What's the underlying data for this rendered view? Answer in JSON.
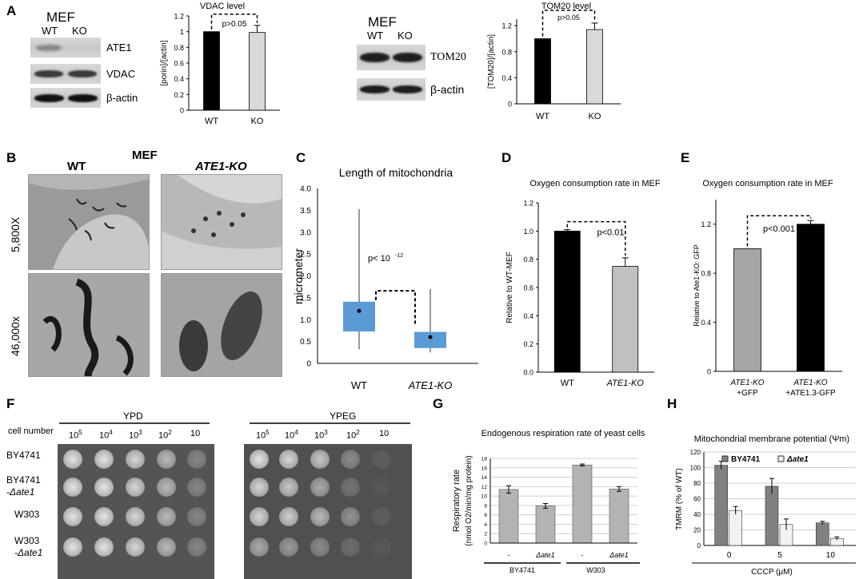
{
  "panel_letters": {
    "A": "A",
    "B": "B",
    "C": "C",
    "D": "D",
    "E": "E",
    "F": "F",
    "G": "G",
    "H": "H"
  },
  "panelA": {
    "blot1": {
      "title": "MEF",
      "lanes": [
        "WT",
        "KO"
      ],
      "rows": [
        "ATE1",
        "VDAC",
        "β-actin"
      ]
    },
    "blot2": {
      "title": "MEF",
      "lanes": [
        "WT",
        "KO"
      ],
      "rows": [
        "TOM20",
        "β-actin"
      ]
    }
  },
  "panelB": {
    "title": "MEF",
    "col_wt": "WT",
    "col_ko": "ATE1-KO",
    "row1": "5,800X",
    "row2": "46,000x"
  },
  "panelF": {
    "row_header": "cell number",
    "media": [
      "YPD",
      "YPEG"
    ],
    "dilutions": [
      "10",
      "5",
      "10",
      "4",
      "10",
      "3",
      "10",
      "2",
      "10"
    ],
    "strains": [
      {
        "l1": "BY4741",
        "l2": ""
      },
      {
        "l1": "BY4741",
        "l2": "-Δate1"
      },
      {
        "l1": "W303",
        "l2": ""
      },
      {
        "l1": "W303",
        "l2": "-Δate1"
      }
    ]
  },
  "chart_data": [
    {
      "id": "A-VDAC",
      "type": "bar",
      "title": "VDAC level",
      "ylabel": "[porin]/[actin]",
      "categories": [
        "WT",
        "KO"
      ],
      "values": [
        1.0,
        0.99
      ],
      "errors": [
        0.0,
        0.09
      ],
      "ylim": [
        0,
        1.2
      ],
      "yticks": [
        "0",
        "0.2",
        "0.4",
        "0.6",
        "0.8",
        "1",
        "1.2"
      ],
      "annotation": "p>0.05",
      "colors": [
        "#000000",
        "#d9d9d9"
      ]
    },
    {
      "id": "A-TOM20",
      "type": "bar",
      "title": "TOM20 level",
      "ylabel": "[TOM20]/[actin]",
      "categories": [
        "WT",
        "KO"
      ],
      "values": [
        1.0,
        1.14
      ],
      "errors": [
        0.0,
        0.1
      ],
      "ylim": [
        0,
        1.3
      ],
      "yticks": [
        "0",
        "0.4",
        "0.8",
        "1.2"
      ],
      "annotation": "p>0.05",
      "colors": [
        "#000000",
        "#d9d9d9"
      ]
    },
    {
      "id": "C",
      "type": "box",
      "title": "Length of mitochondria",
      "ylabel": "micrometer",
      "categories": [
        "WT",
        "ATE1-KO"
      ],
      "ylim": [
        0,
        4.0
      ],
      "yticks": [
        "0",
        "0.5",
        "1.0",
        "1.5",
        "2.0",
        "2.5",
        "3.0",
        "3.5",
        "4.0"
      ],
      "boxes": [
        {
          "min": 0.32,
          "q1": 0.73,
          "q3": 1.41,
          "max": 3.53,
          "mean": 1.2
        },
        {
          "min": 0.25,
          "q1": 0.35,
          "q3": 0.72,
          "max": 1.7,
          "mean": 0.6
        }
      ],
      "annotation": "p< 10",
      "annotation_exp": "-12",
      "color": "#5b9bd5"
    },
    {
      "id": "D",
      "type": "bar",
      "title": "Oxygen consumption rate in MEF",
      "ylabel": "Relative to WT-MEF",
      "categories": [
        "WT",
        "ATE1-KO"
      ],
      "values": [
        1.0,
        0.75
      ],
      "errors": [
        0.01,
        0.06
      ],
      "ylim": [
        0,
        1.2
      ],
      "yticks": [
        "0.0",
        "0.2",
        "0.4",
        "0.6",
        "0.8",
        "1.0",
        "1.2"
      ],
      "annotation": "p<0.01",
      "colors": [
        "#000000",
        "#c0c0c0"
      ]
    },
    {
      "id": "E",
      "type": "bar",
      "title": "Oxygen consumption rate in MEF",
      "ylabel": "Relative to Ate1-KO: GFP",
      "categories": [
        "ATE1-KO +GFP",
        "ATE1-KO +ATE1.3-GFP"
      ],
      "cat_lines": [
        [
          "ATE1-KO",
          "+GFP"
        ],
        [
          "ATE1-KO",
          "+ATE1.3-GFP"
        ]
      ],
      "values": [
        1.0,
        1.2
      ],
      "errors": [
        0.0,
        0.03
      ],
      "ylim": [
        0,
        1.4
      ],
      "yticks": [
        "0",
        "0.4",
        "0.8",
        "1.2"
      ],
      "annotation": "p<0.001",
      "colors": [
        "#a6a6a6",
        "#000000"
      ]
    },
    {
      "id": "G",
      "type": "bar",
      "title": "Endogenous respiration rate of yeast cells",
      "ylabel": "Respiratory rate",
      "ylabel2": "(nmol O2/min/mg protein)",
      "categories": [
        "-",
        "Δate1",
        "-",
        "Δate1"
      ],
      "groups": [
        "BY4741",
        "W303"
      ],
      "values": [
        11.4,
        7.9,
        16.6,
        11.5
      ],
      "errors": [
        0.8,
        0.5,
        0.2,
        0.5
      ],
      "ylim": [
        0,
        18
      ],
      "yticks": [
        "0",
        "2",
        "4",
        "6",
        "8",
        "10",
        "12",
        "14",
        "16",
        "18"
      ],
      "colors": [
        "#b3b3b3",
        "#b3b3b3",
        "#b3b3b3",
        "#b3b3b3"
      ]
    },
    {
      "id": "H",
      "type": "bar",
      "title": "Mitochondrial membrane potential (Ψm)",
      "ylabel": "TMRM (% of WT)",
      "xlabel": "CCCP (μM)",
      "categories": [
        "0",
        "5",
        "10"
      ],
      "series": [
        {
          "name": "BY4741",
          "values": [
            103,
            76,
            29
          ],
          "errors": [
            5,
            10,
            2
          ],
          "color": "#808080"
        },
        {
          "name": "Δate1",
          "values": [
            45,
            27,
            9
          ],
          "errors": [
            5,
            7,
            2
          ],
          "color": "#f2f2f2"
        }
      ],
      "ylim": [
        0,
        120
      ],
      "yticks": [
        "0",
        "20",
        "40",
        "60",
        "80",
        "100",
        "120"
      ]
    }
  ]
}
